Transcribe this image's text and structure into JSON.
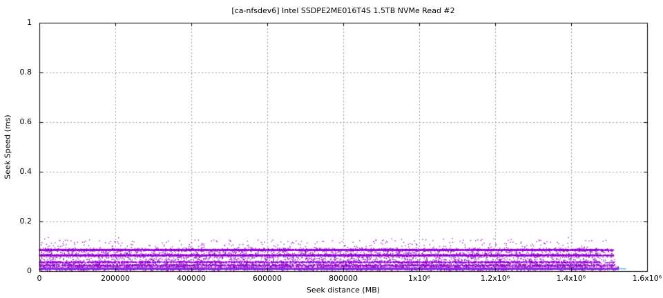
{
  "title": "[ca-nfsdev6] Intel SSDPE2ME016T4S 1.5TB NVMe Read #2",
  "axes": {
    "x": {
      "label": "Seek distance (MB)",
      "min": 0,
      "max": 1600000,
      "ticks": [
        {
          "v": 0,
          "label": "0"
        },
        {
          "v": 200000,
          "label": "200000"
        },
        {
          "v": 400000,
          "label": "400000"
        },
        {
          "v": 600000,
          "label": "600000"
        },
        {
          "v": 800000,
          "label": "800000"
        },
        {
          "v": 1000000,
          "label": "1x10⁶"
        },
        {
          "v": 1200000,
          "label": "1.2x10⁶"
        },
        {
          "v": 1400000,
          "label": "1.4x10⁶"
        },
        {
          "v": 1600000,
          "label": "1.6x10⁶"
        }
      ]
    },
    "y": {
      "label": "Seek Speed (ms)",
      "min": 0,
      "max": 1,
      "ticks": [
        {
          "v": 0,
          "label": "0"
        },
        {
          "v": 0.2,
          "label": "0.2"
        },
        {
          "v": 0.4,
          "label": "0.4"
        },
        {
          "v": 0.6,
          "label": "0.6"
        },
        {
          "v": 0.8,
          "label": "0.8"
        },
        {
          "v": 1,
          "label": "1"
        }
      ]
    }
  },
  "chart_data": {
    "type": "scatter",
    "title": "[ca-nfsdev6] Intel SSDPE2ME016T4S 1.5TB NVMe Read #2",
    "xlabel": "Seek distance (MB)",
    "ylabel": "Seek Speed (ms)",
    "xlim": [
      0,
      1600000
    ],
    "ylim": [
      0,
      1
    ],
    "grid": true,
    "grid_color": "#999999",
    "border_color": "#000000",
    "point_color": "#9400d3",
    "avg_line_color": "#56b4e9",
    "seed": 1337,
    "bands": [
      {
        "name": "bottom-solid-band",
        "y": 0.0097,
        "y_spread": 0.0042,
        "x_min": 0,
        "x_max": 1525000,
        "count": 9000,
        "dist": "tri"
      },
      {
        "name": "low-speckle-band",
        "y": 0.0225,
        "y_spread": 0.0062,
        "x_min": 0,
        "x_max": 1520000,
        "count": 3200,
        "dist": "tri"
      },
      {
        "name": "band-0.036",
        "y": 0.036,
        "y_spread": 0.0055,
        "x_min": 0,
        "x_max": 1515000,
        "count": 2600,
        "dist": "tri"
      },
      {
        "name": "mid-sparse-scatter",
        "y": 0.05,
        "y_spread": 0.0075,
        "x_min": 0,
        "x_max": 1510000,
        "count": 550,
        "dist": "uni"
      },
      {
        "name": "solid-band-0.064",
        "y": 0.0635,
        "y_spread": 0.004,
        "x_min": 0,
        "x_max": 1512000,
        "count": 6500,
        "dist": "tri"
      },
      {
        "name": "gap-sparse-scatter",
        "y": 0.075,
        "y_spread": 0.0045,
        "x_min": 0,
        "x_max": 1508000,
        "count": 260,
        "dist": "uni"
      },
      {
        "name": "solid-band-0.085",
        "y": 0.085,
        "y_spread": 0.0035,
        "x_min": 0,
        "x_max": 1512000,
        "count": 6500,
        "dist": "tri"
      },
      {
        "name": "upper-sparse-scatter",
        "y": 0.105,
        "y_spread": 0.021,
        "x_min": 0,
        "x_max": 1500000,
        "count": 300,
        "dist": "uni"
      },
      {
        "name": "outlier-dots",
        "y": 0.128,
        "y_spread": 0.008,
        "x_min": 0,
        "x_max": 1480000,
        "count": 18,
        "dist": "uni"
      }
    ],
    "avg_line": {
      "y": 0.0095,
      "x_min": 0,
      "x_max": 1545000
    }
  }
}
